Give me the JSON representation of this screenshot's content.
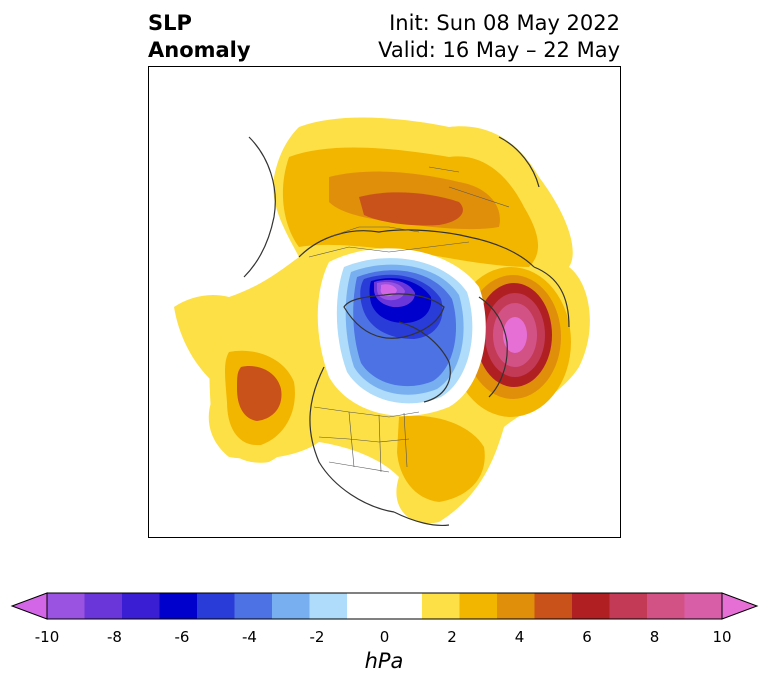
{
  "title": {
    "line1": "SLP",
    "line2": "Anomaly",
    "init": "Init: Sun 08 May 2022",
    "valid": "Valid: 16 May – 22 May"
  },
  "colorbar": {
    "unit": "hPa",
    "range": [
      -10,
      10
    ],
    "step": 1,
    "extend": "both",
    "colors": [
      "#d266e6",
      "#9a52e0",
      "#6a36da",
      "#3a1ed4",
      "#0000cd",
      "#2a3cd8",
      "#4d72e3",
      "#78aff0",
      "#aedcfa",
      "#ffffff",
      "#ffffff",
      "#fde045",
      "#f2b600",
      "#e08f0a",
      "#c8521a",
      "#b01f22",
      "#c33a56",
      "#d35285",
      "#d95ea8",
      "#e66fd6"
    ],
    "tick_labels": [
      "-10",
      "-8",
      "-6",
      "-4",
      "-2",
      "0",
      "2",
      "4",
      "6",
      "8",
      "10"
    ]
  },
  "map": {
    "projection": "north-polar-stereographic",
    "features": [
      "coastlines",
      "country-borders",
      "us-state-borders",
      "canadian-province-borders"
    ],
    "anomalies": [
      {
        "region": "central Arctic / Greenland side",
        "sign": "negative",
        "peak_hpa": -9
      },
      {
        "region": "Bering Sea / eastern Siberia",
        "sign": "positive",
        "peak_hpa": 9
      },
      {
        "region": "northern Russia / Siberia",
        "sign": "positive",
        "peak_hpa": 5
      },
      {
        "region": "western Europe / north Atlantic",
        "sign": "positive",
        "peak_hpa": 4
      }
    ]
  }
}
